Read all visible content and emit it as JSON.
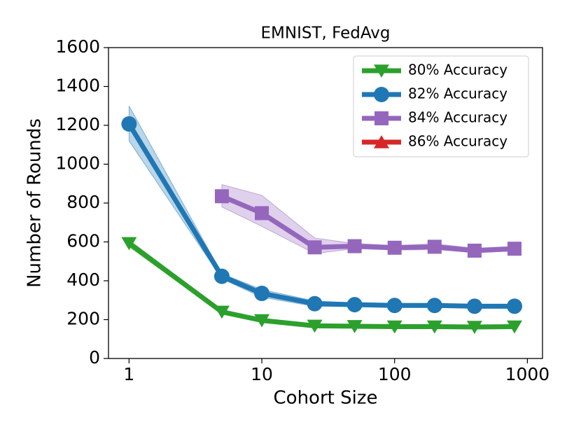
{
  "chart_data": {
    "type": "line",
    "title": "EMNIST, FedAvg",
    "x_label": "Cohort Size",
    "y_label": "Number of Rounds",
    "x": [
      1,
      5,
      10,
      25,
      50,
      100,
      200,
      400,
      800
    ],
    "xscale": "log",
    "xlim": [
      0.7,
      1300
    ],
    "xticks": [
      1,
      10,
      100,
      1000
    ],
    "ylim": [
      0,
      1600
    ],
    "yticks": [
      0,
      200,
      400,
      600,
      800,
      1000,
      1200,
      1400,
      1600
    ],
    "legend": "upper right",
    "series": [
      {
        "name": "80% Accuracy",
        "color": "#2ca02c",
        "marker": "triangle-down",
        "values": [
          593,
          240,
          196,
          168,
          166,
          164,
          164,
          162,
          164
        ],
        "lower": [
          575,
          230,
          190,
          163,
          161,
          159,
          159,
          157,
          159
        ],
        "upper": [
          610,
          250,
          202,
          173,
          171,
          169,
          169,
          167,
          169
        ]
      },
      {
        "name": "82% Accuracy",
        "color": "#1f77b4",
        "marker": "circle",
        "values": [
          1207,
          423,
          335,
          282,
          277,
          273,
          273,
          269,
          269
        ],
        "lower": [
          1120,
          410,
          315,
          268,
          268,
          265,
          265,
          262,
          262
        ],
        "upper": [
          1300,
          436,
          355,
          296,
          286,
          281,
          281,
          276,
          276
        ]
      },
      {
        "name": "84% Accuracy",
        "color": "#9467bd",
        "marker": "square",
        "values": [
          null,
          835,
          748,
          572,
          578,
          570,
          575,
          555,
          565
        ],
        "lower": [
          null,
          780,
          680,
          540,
          565,
          558,
          560,
          545,
          553
        ],
        "upper": [
          null,
          895,
          840,
          620,
          592,
          582,
          590,
          568,
          577
        ]
      },
      {
        "name": "86% Accuracy",
        "color": "#d62728",
        "marker": "triangle-up",
        "values": [
          null,
          null,
          null,
          null,
          null,
          null,
          null,
          null,
          null
        ]
      }
    ]
  }
}
